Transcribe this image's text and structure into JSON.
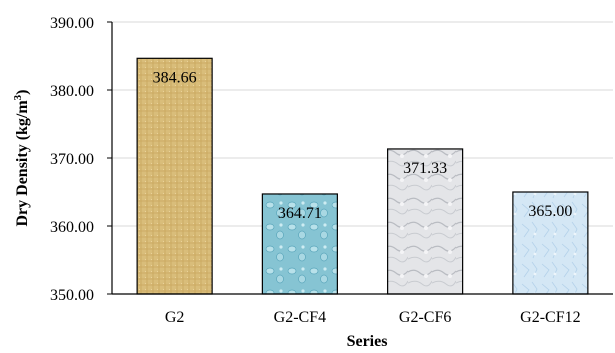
{
  "chart_data": {
    "type": "bar",
    "categories": [
      "G2",
      "G2-CF4",
      "G2-CF6",
      "G2-CF12"
    ],
    "values": [
      384.66,
      364.71,
      371.33,
      365.0
    ],
    "data_labels": [
      "384.66",
      "364.71",
      "371.33",
      "365.00"
    ],
    "title": "",
    "xlabel": "Series",
    "ylabel": "Dry Density (kg/m",
    "ylabel_superscript": "3",
    "ylabel_suffix": ")",
    "ylim": [
      350,
      390
    ],
    "yticks": [
      350,
      360,
      370,
      380,
      390
    ],
    "ytick_labels": [
      "350.00",
      "360.00",
      "370.00",
      "380.00",
      "390.00"
    ],
    "grid": "horizontal",
    "legend": "none",
    "bar_colors": [
      "#d9bd7a",
      "#8cc9d6",
      "#e2e3e6",
      "#d3e6f4"
    ],
    "bar_textures": [
      "woven-paper",
      "water-drops",
      "marble",
      "ice"
    ]
  }
}
